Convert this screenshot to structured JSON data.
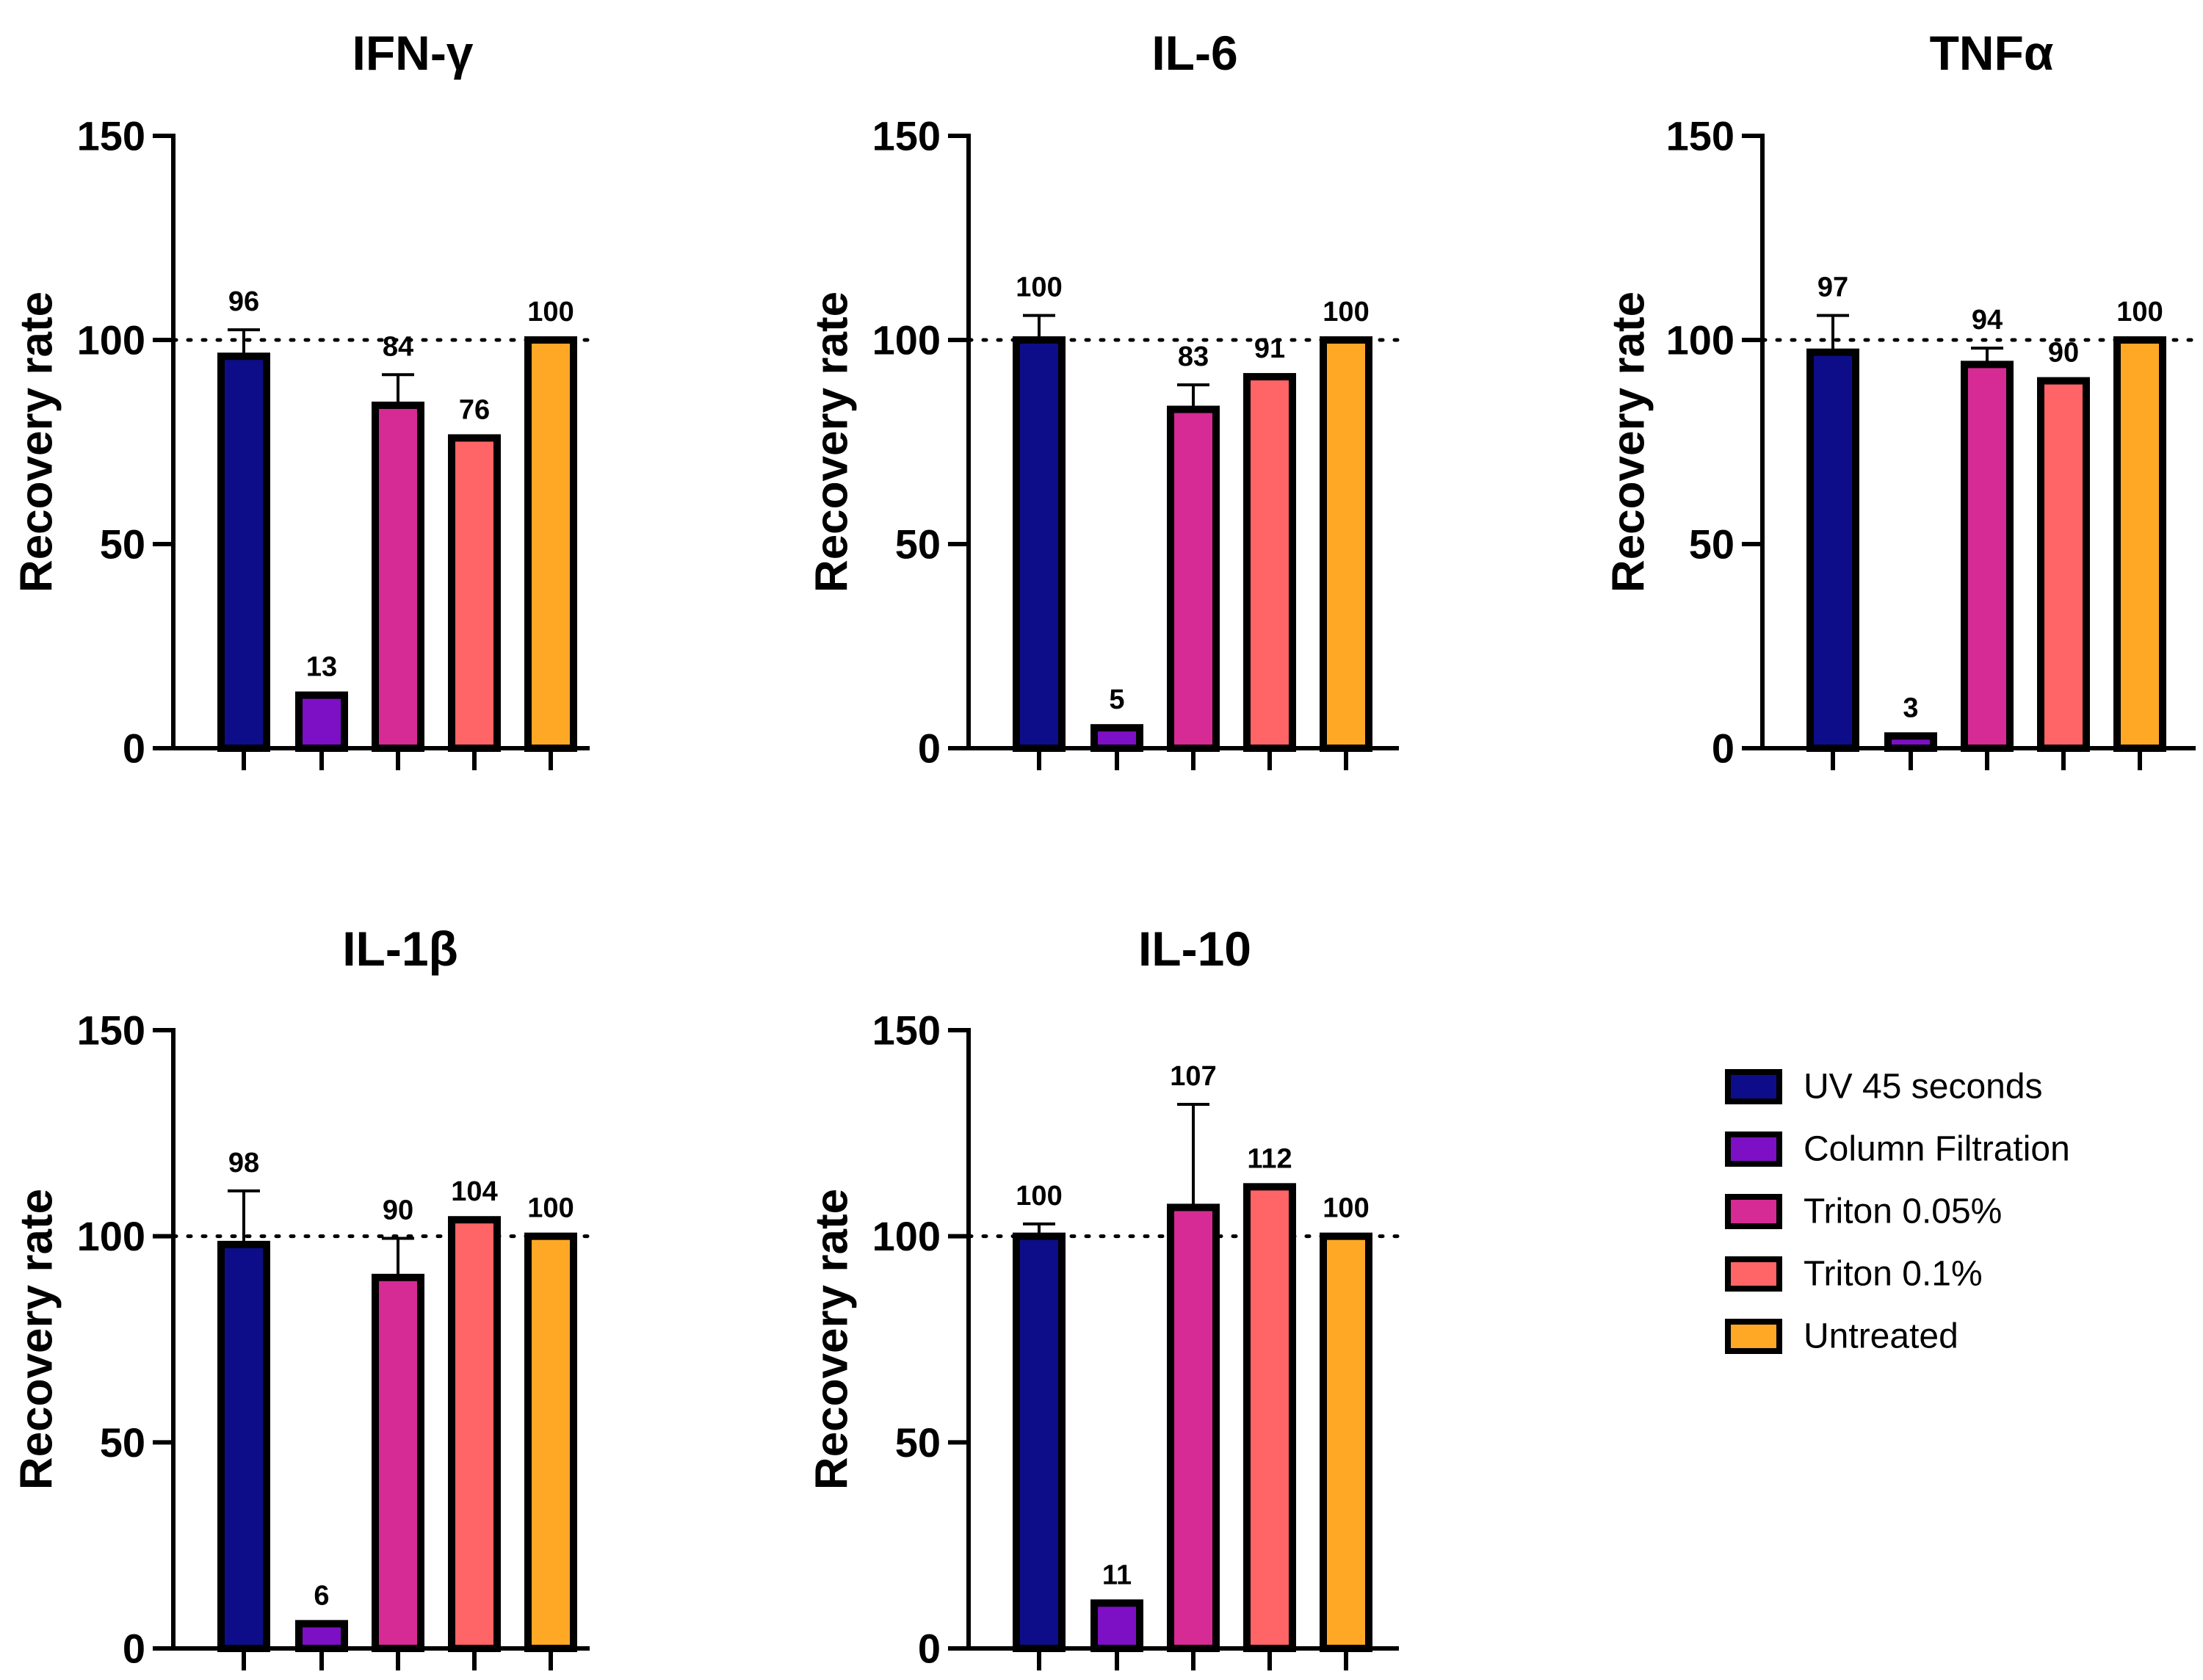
{
  "chart_data": [
    {
      "type": "bar",
      "title": "IFN-γ",
      "ylabel": "Recovery rate",
      "ylim": [
        0,
        150
      ],
      "yticks": [
        0,
        50,
        100,
        150
      ],
      "reference_line": 100,
      "categories": [
        "UV 45 seconds",
        "Column Filtration",
        "Triton 0.05%",
        "Triton 0.1%",
        "Untreated"
      ],
      "values": [
        96,
        13,
        84,
        76,
        100
      ],
      "errors": [
        6.5,
        0,
        7.5,
        0,
        0
      ],
      "data_labels": [
        "96",
        "13",
        "84",
        "76",
        "100"
      ]
    },
    {
      "type": "bar",
      "title": "IL-6",
      "ylabel": "Recovery rate",
      "ylim": [
        0,
        150
      ],
      "yticks": [
        0,
        50,
        100,
        150
      ],
      "reference_line": 100,
      "categories": [
        "UV 45 seconds",
        "Column Filtration",
        "Triton 0.05%",
        "Triton 0.1%",
        "Untreated"
      ],
      "values": [
        100,
        5,
        83,
        91,
        100
      ],
      "errors": [
        6,
        0,
        6,
        0,
        0
      ],
      "data_labels": [
        "100",
        "5",
        "83",
        "91",
        "100"
      ]
    },
    {
      "type": "bar",
      "title": "TNFα",
      "ylabel": "Recovery rate",
      "ylim": [
        0,
        150
      ],
      "yticks": [
        0,
        50,
        100,
        150
      ],
      "reference_line": 100,
      "categories": [
        "UV 45 seconds",
        "Column Filtration",
        "Triton 0.05%",
        "Triton 0.1%",
        "Untreated"
      ],
      "values": [
        97,
        3,
        94,
        90,
        100
      ],
      "errors": [
        9,
        0,
        4,
        0,
        0
      ],
      "data_labels": [
        "97",
        "3",
        "94",
        "90",
        "100"
      ]
    },
    {
      "type": "bar",
      "title": "IL-1β",
      "ylabel": "Recovery rate",
      "ylim": [
        0,
        150
      ],
      "yticks": [
        0,
        50,
        100,
        150
      ],
      "reference_line": 100,
      "categories": [
        "UV 45 seconds",
        "Column Filtration",
        "Triton 0.05%",
        "Triton 0.1%",
        "Untreated"
      ],
      "values": [
        98,
        6,
        90,
        104,
        100
      ],
      "errors": [
        13,
        0,
        9.5,
        0,
        0
      ],
      "data_labels": [
        "98",
        "6",
        "90",
        "104",
        "100"
      ]
    },
    {
      "type": "bar",
      "title": "IL-10",
      "ylabel": "Recovery rate",
      "ylim": [
        0,
        150
      ],
      "yticks": [
        0,
        50,
        100,
        150
      ],
      "reference_line": 100,
      "categories": [
        "UV 45 seconds",
        "Column Filtration",
        "Triton 0.05%",
        "Triton 0.1%",
        "Untreated"
      ],
      "values": [
        100,
        11,
        107,
        112,
        100
      ],
      "errors": [
        3,
        0,
        25,
        0,
        0
      ],
      "data_labels": [
        "100",
        "11",
        "107",
        "112",
        "100"
      ]
    }
  ],
  "legend": {
    "placement": "bottom-right",
    "items": [
      {
        "label": "UV 45 seconds",
        "color": "#0d0d8a"
      },
      {
        "label": "Column Filtration",
        "color": "#7d0fc4"
      },
      {
        "label": "Triton 0.05%",
        "color": "#d62a94"
      },
      {
        "label": "Triton 0.1%",
        "color": "#ff6466"
      },
      {
        "label": "Untreated",
        "color": "#ffa826"
      }
    ]
  },
  "colors": {
    "UV 45 seconds": "#0d0d8a",
    "Column Filtration": "#7d0fc4",
    "Triton 0.05%": "#d62a94",
    "Triton 0.1%": "#ff6466",
    "Untreated": "#ffa826"
  }
}
